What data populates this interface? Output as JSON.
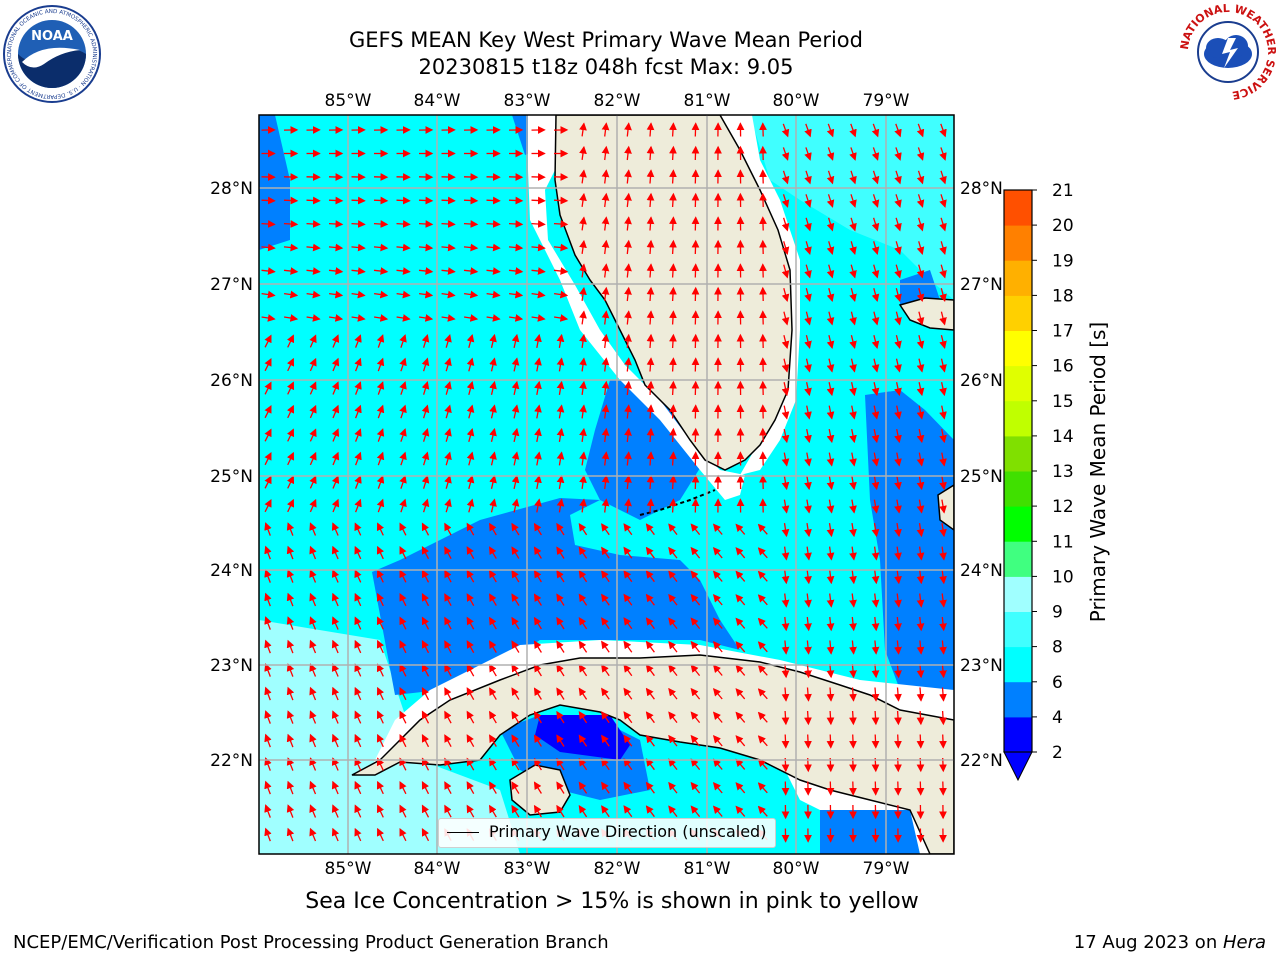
{
  "title": {
    "line1": "GEFS MEAN Key West Primary Wave Mean Period",
    "line2": "20230815 t18z 048h fcst   Max: 9.05"
  },
  "logos": {
    "left": "noaa-logo",
    "left_text": "NOAA",
    "left_ring_text": "NATIONAL OCEANIC AND ATMOSPHERIC ADMINISTRATION · U.S. DEPARTMENT OF COMMERCE",
    "right": "nws-logo",
    "right_ring_text": "NATIONAL WEATHER SERVICE"
  },
  "map": {
    "lon_ticks": [
      "85°W",
      "84°W",
      "83°W",
      "82°W",
      "81°W",
      "80°W",
      "79°W"
    ],
    "lat_ticks": [
      "28°N",
      "27°N",
      "26°N",
      "25°N",
      "24°N",
      "23°N",
      "22°N"
    ],
    "legend": "Primary Wave Direction (unscaled)",
    "vector_color": "#ff0000",
    "land_color": "#eeecda",
    "grid_color": "#b0b0b0"
  },
  "colorbar": {
    "label": "Primary Wave Mean Period [s]",
    "ticks": [
      "2",
      "4",
      "6",
      "8",
      "9",
      "10",
      "11",
      "12",
      "13",
      "14",
      "15",
      "16",
      "17",
      "18",
      "19",
      "20",
      "21"
    ],
    "colors": [
      "#0000ff",
      "#0080ff",
      "#00ffff",
      "#40ffff",
      "#a0ffff",
      "#40ff80",
      "#00ff00",
      "#40e000",
      "#80e000",
      "#c0ff00",
      "#e0ff00",
      "#ffff00",
      "#ffd000",
      "#ffb000",
      "#ff8000",
      "#ff5000",
      "#ff2000",
      "#ff0000"
    ],
    "extend_color": "#0000ff"
  },
  "caption": "Sea Ice Concentration > 15% is shown in pink to yellow",
  "footer": {
    "left": "NCEP/EMC/Verification Post Processing Product Generation Branch",
    "right_prefix": "17 Aug 2023 on ",
    "right_host": "Hera"
  }
}
